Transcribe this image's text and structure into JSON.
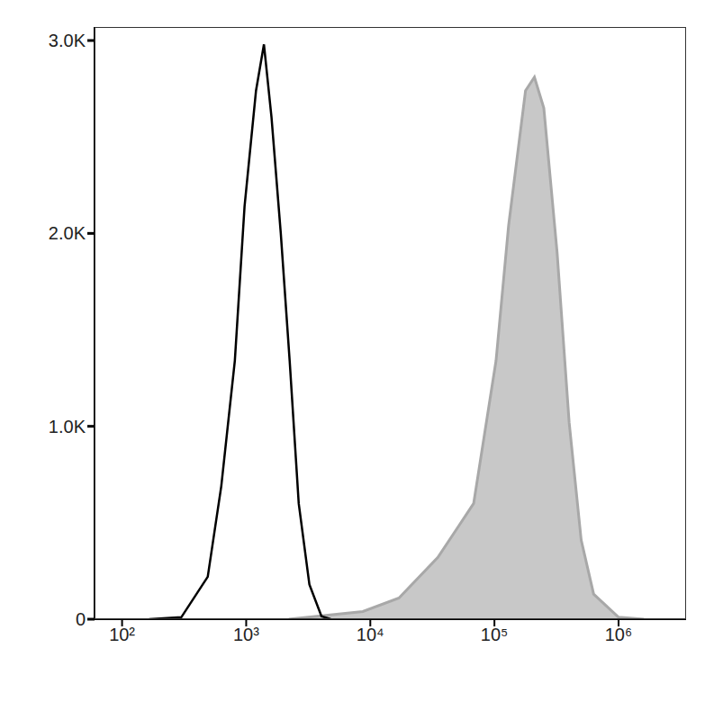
{
  "chart_data": {
    "type": "area",
    "log": "x",
    "grid": false,
    "xlim": [
      60,
      3500000
    ],
    "ylim": [
      0,
      3070
    ],
    "xticks": [
      {
        "value": 100,
        "label": "10²"
      },
      {
        "value": 1000,
        "label": "10³"
      },
      {
        "value": 10000,
        "label": "10⁴"
      },
      {
        "value": 100000,
        "label": "10⁵"
      },
      {
        "value": 1000000,
        "label": "10⁶"
      }
    ],
    "yticks": [
      0,
      {
        "value": 1000,
        "label": "1.0K"
      },
      {
        "value": 2000,
        "label": "2.0K"
      },
      {
        "value": 3000,
        "label": "3.0K"
      }
    ],
    "series": [
      {
        "type": "line",
        "color": "#000000",
        "x": [
          165,
          300,
          490,
          630,
          810,
          970,
          1200,
          1390,
          1600,
          1900,
          2240,
          2650,
          3230,
          4040,
          4800
        ],
        "values": [
          0,
          10,
          220,
          690,
          1340,
          2140,
          2740,
          2980,
          2600,
          2000,
          1340,
          600,
          180,
          15,
          0
        ]
      },
      {
        "type": "area",
        "color": "#c8c8c8",
        "x": [
          2200,
          8700,
          17000,
          35000,
          68000,
          103000,
          130000,
          178000,
          210000,
          250000,
          320000,
          400000,
          500000,
          630000,
          1000000,
          1600000
        ],
        "values": [
          0,
          40,
          110,
          320,
          600,
          1340,
          2040,
          2740,
          2810,
          2650,
          1900,
          1020,
          410,
          130,
          10,
          0
        ]
      }
    ]
  }
}
